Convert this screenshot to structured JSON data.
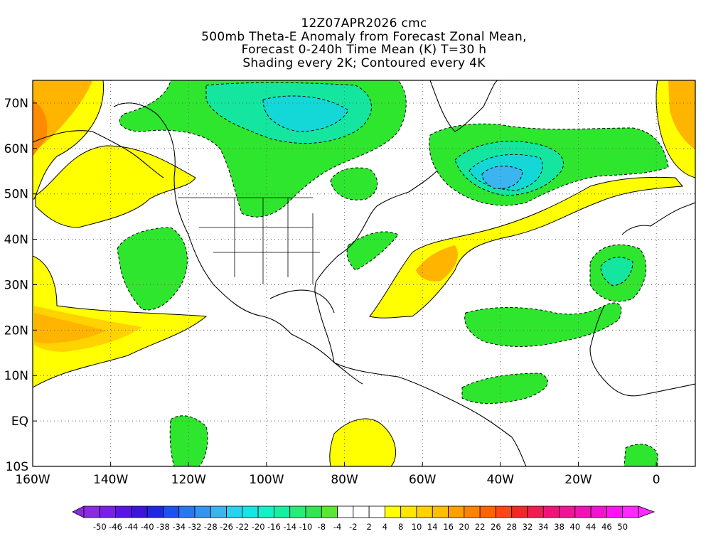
{
  "title": {
    "line1": "12Z07APR2026 cmc",
    "line2": "500mb Theta-E Anomaly from Forecast Zonal Mean,",
    "line3": "Forecast 0-240h Time Mean (K) T=30 h",
    "line4": "Shading every 2K; Contoured every 4K"
  },
  "map": {
    "projection": "cylindrical equidistant",
    "lon_range": [
      -160,
      10
    ],
    "lat_range": [
      -10,
      75
    ],
    "grid": "dotted",
    "lat_labels": [
      "70N",
      "60N",
      "50N",
      "40N",
      "30N",
      "20N",
      "10N",
      "EQ",
      "10S"
    ],
    "lon_labels": [
      "160W",
      "140W",
      "120W",
      "100W",
      "80W",
      "60W",
      "40W",
      "20W",
      "0"
    ]
  },
  "colorbar": {
    "labels": [
      "-50",
      "-46",
      "-44",
      "-40",
      "-38",
      "-34",
      "-32",
      "-28",
      "-26",
      "-22",
      "-20",
      "-16",
      "-14",
      "-10",
      "-8",
      "-4",
      "-2",
      "2",
      "4",
      "8",
      "10",
      "14",
      "16",
      "20",
      "22",
      "26",
      "28",
      "32",
      "34",
      "38",
      "40",
      "44",
      "46",
      "50"
    ],
    "colors": [
      "#8a2be2",
      "#7a1ee8",
      "#5a14e6",
      "#3c14dc",
      "#1e28e0",
      "#1e50f0",
      "#2878f0",
      "#3296f0",
      "#3cb4f0",
      "#28d2f0",
      "#14e6e6",
      "#14f0c8",
      "#14f0a0",
      "#28eb78",
      "#32e650",
      "#5ae632",
      "#ffffff",
      "#ffffff",
      "#ffffff",
      "#ffff00",
      "#ffe600",
      "#ffd200",
      "#ffbe00",
      "#ffa000",
      "#ff8200",
      "#ff6400",
      "#ff4614",
      "#f02828",
      "#f01e50",
      "#f01478",
      "#f01496",
      "#f014b4",
      "#f014d2",
      "#ff14f0",
      "#ff28ff"
    ]
  },
  "field_colors": {
    "neg2": "#2ee62e",
    "neg4": "#14e6a0",
    "neg6": "#14d8d8",
    "neg8": "#3cb4f0",
    "pos2": "#ffff00",
    "pos4": "#ffd200",
    "pos6": "#ffb400"
  }
}
